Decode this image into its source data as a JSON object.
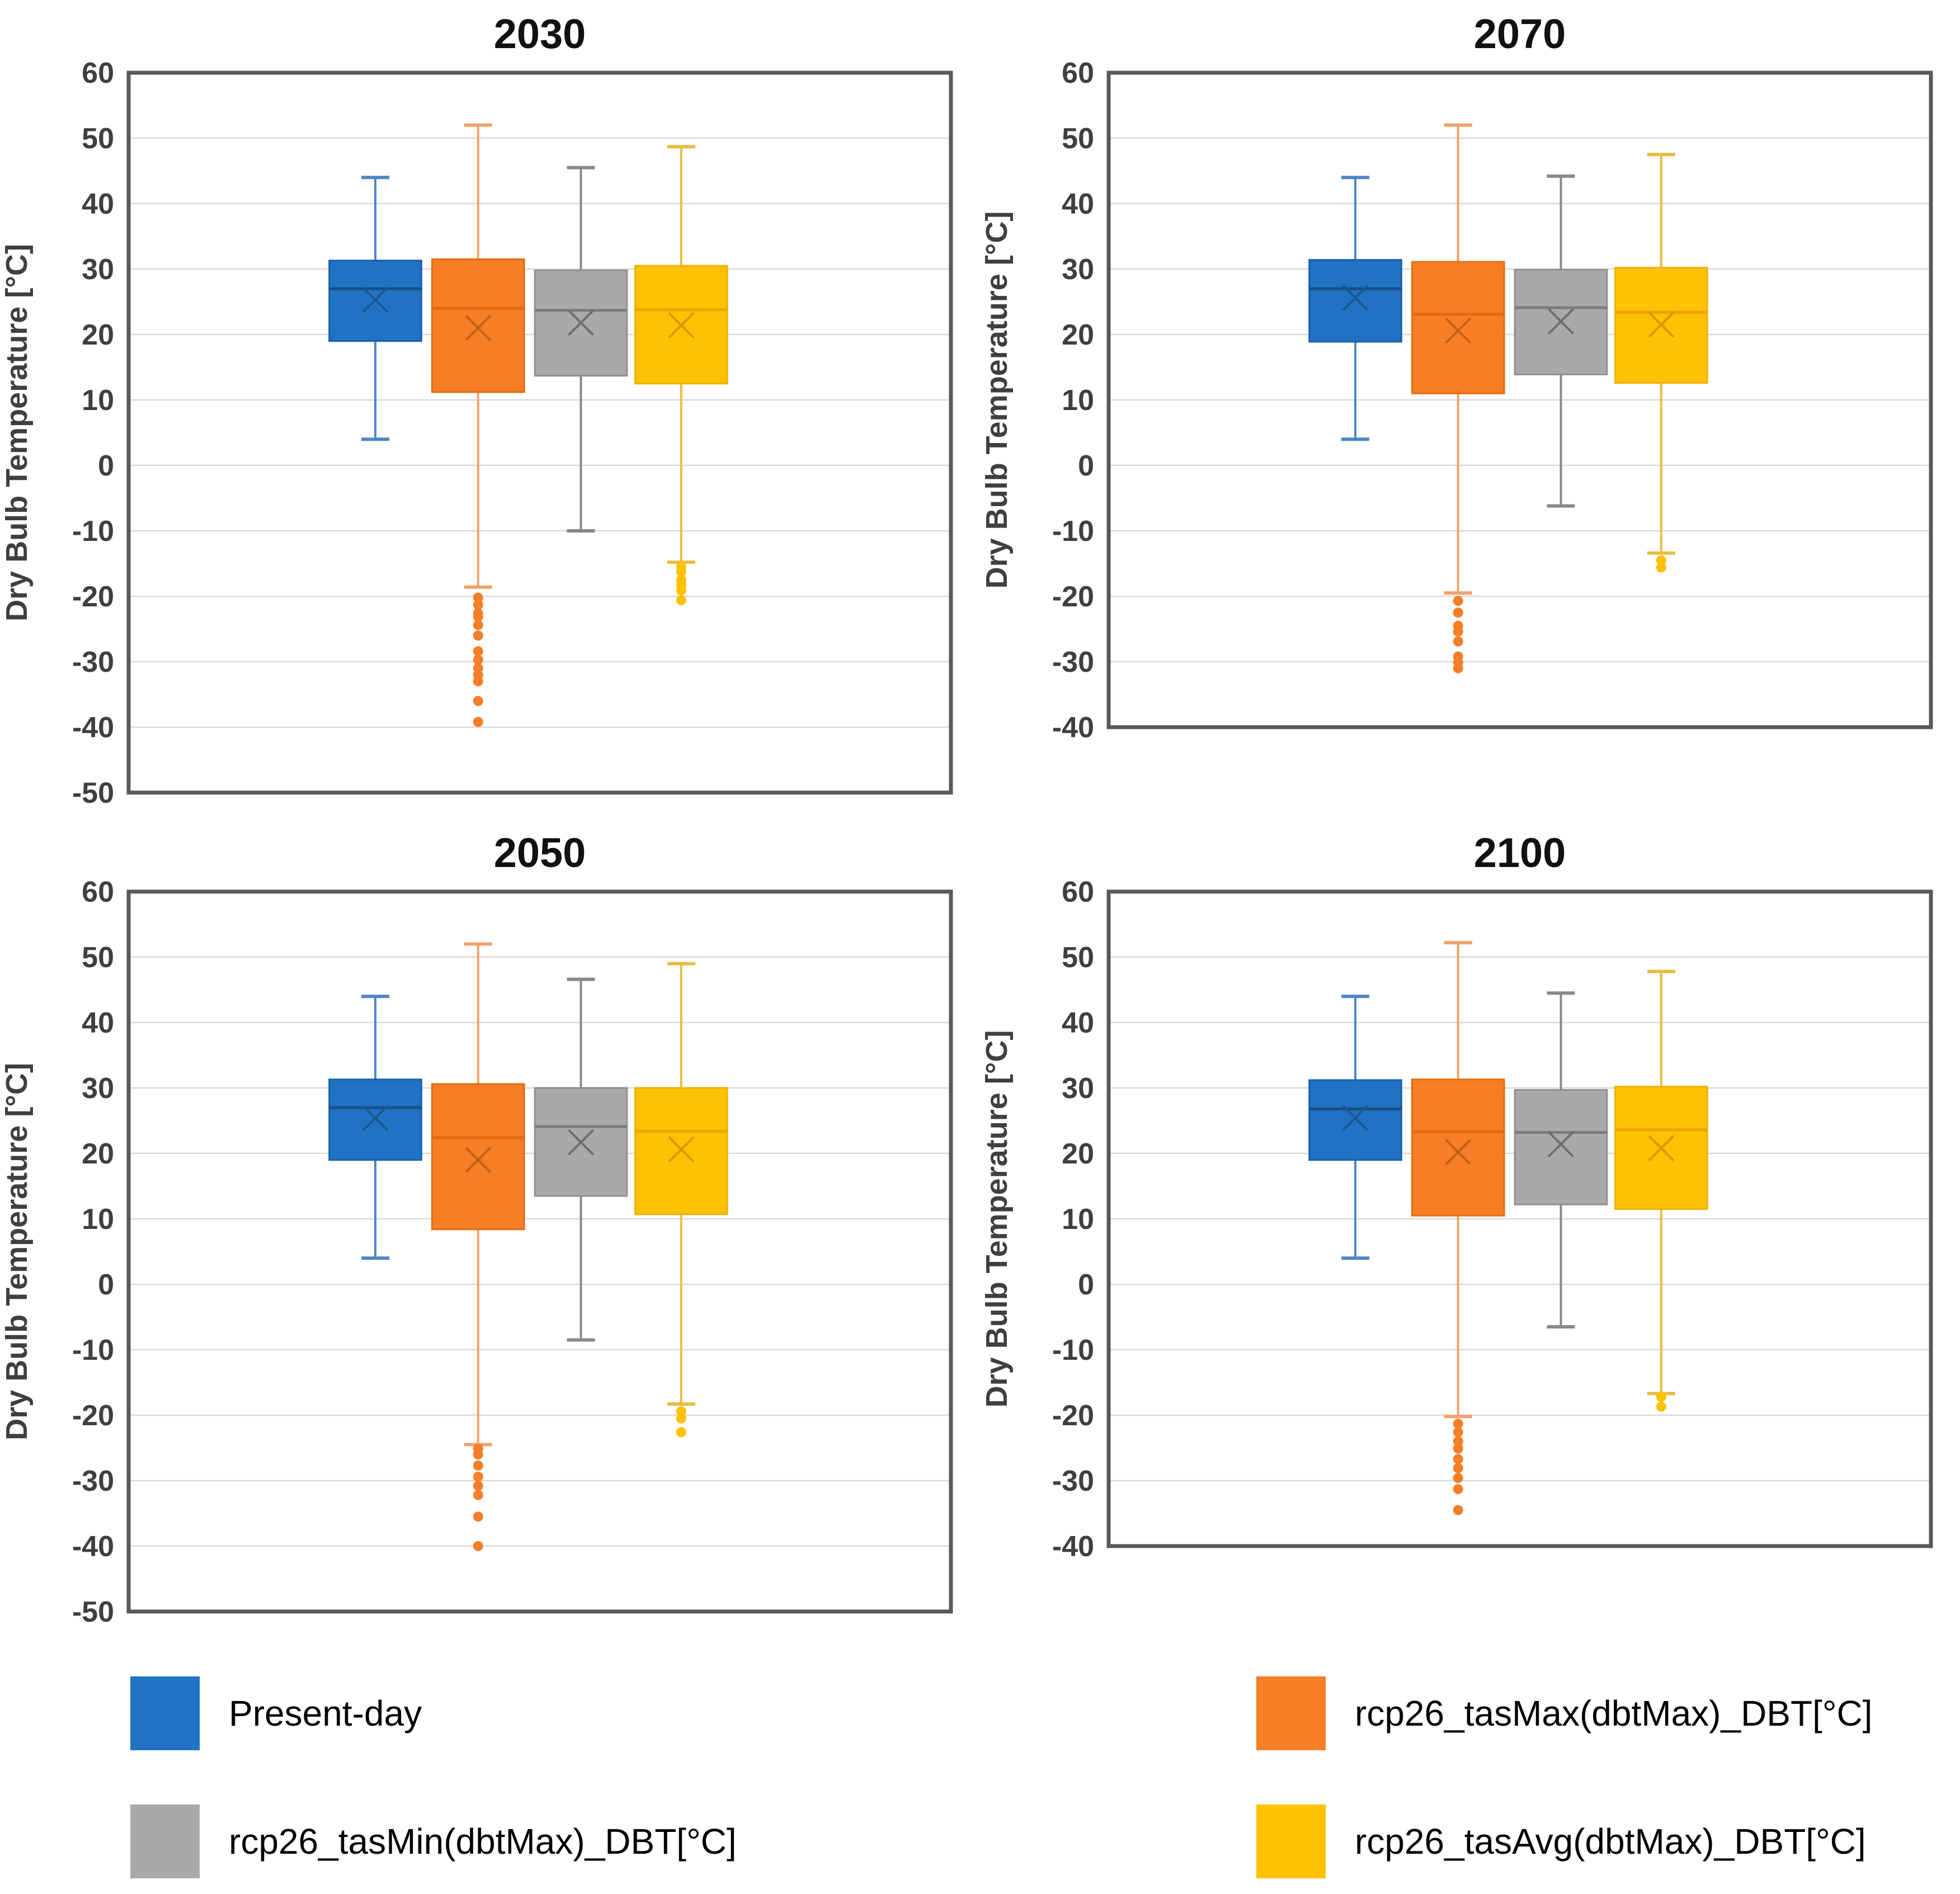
{
  "figure": {
    "ylabel": "Dry Bulb Temperature [°C]",
    "legend_position": "bottom",
    "grid": true
  },
  "colors": {
    "present_day": {
      "fill": "#1f72c4",
      "stroke": "#1a60a8",
      "median": "#1a4e84",
      "mean": "#1d568f",
      "whisker": "#4e86c6"
    },
    "tas_max": {
      "fill": "#f57e27",
      "stroke": "#e56d10",
      "median": "#e06a10",
      "mean": "#c55f13",
      "whisker": "#f0a26b"
    },
    "tas_min": {
      "fill": "#a9a9a9",
      "stroke": "#8f8f8f",
      "median": "#7c7c7c",
      "mean": "#6e6e6e",
      "whisker": "#898989"
    },
    "tas_avg": {
      "fill": "#ffc103",
      "stroke": "#edb100",
      "median": "#efa200",
      "mean": "#db9600",
      "whisker": "#e9bc41"
    }
  },
  "legend": {
    "items": [
      {
        "label": "Present-day",
        "color_key": "present_day"
      },
      {
        "label": "rcp26_tasMax(dbtMax)_DBT[°C]",
        "color_key": "tas_max"
      },
      {
        "label": "rcp26_tasMin(dbtMax)_DBT[°C]",
        "color_key": "tas_min"
      },
      {
        "label": "rcp26_tasAvg(dbtMax)_DBT[°C]",
        "color_key": "tas_avg"
      }
    ]
  },
  "chart_data": [
    {
      "type": "box",
      "title": "2030",
      "ylabel": "Dry Bulb Temperature [°C]",
      "ylim": [
        -50,
        60
      ],
      "ytick_step": 10,
      "series": [
        {
          "id": "present-day",
          "name": "Present-day",
          "color_key": "present_day",
          "min": 4,
          "q1": 19,
          "median": 27,
          "q3": 31.3,
          "max": 44,
          "mean": 25.3,
          "outliers": []
        },
        {
          "id": "rcp26-tasmax",
          "name": "rcp26_tasMax(dbtMax)_DBT[°C]",
          "color_key": "tas_max",
          "min": -18.6,
          "q1": 11.2,
          "median": 24,
          "q3": 31.5,
          "max": 52,
          "mean": 21,
          "outliers": [
            -20.2,
            -21.3,
            -22.6,
            -23.1,
            -24.4,
            -26.0,
            -28.4,
            -29.7,
            -31.0,
            -32.0,
            -33.0,
            -36.0,
            -39.2
          ]
        },
        {
          "id": "rcp26-tasmin",
          "name": "rcp26_tasMin(dbtMax)_DBT[°C]",
          "color_key": "tas_min",
          "min": -10,
          "q1": 13.7,
          "median": 23.7,
          "q3": 29.8,
          "max": 45.5,
          "mean": 21.8,
          "outliers": []
        },
        {
          "id": "rcp26-tasavg",
          "name": "rcp26_tasAvg(dbtMax)_DBT[°C]",
          "color_key": "tas_avg",
          "min": -14.8,
          "q1": 12.5,
          "median": 23.8,
          "q3": 30.5,
          "max": 48.7,
          "mean": 21.4,
          "outliers": [
            -15.5,
            -16.3,
            -17.5,
            -18.2,
            -19.1,
            -20.6
          ]
        }
      ]
    },
    {
      "type": "box",
      "title": "2070",
      "ylabel": "Dry Bulb Temperature [°C]",
      "ylim": [
        -40,
        60
      ],
      "ytick_step": 10,
      "series": [
        {
          "id": "present-day",
          "name": "Present-day",
          "color_key": "present_day",
          "min": 4,
          "q1": 18.9,
          "median": 27,
          "q3": 31.4,
          "max": 44,
          "mean": 25.6,
          "outliers": []
        },
        {
          "id": "rcp26-tasmax",
          "name": "rcp26_tasMax(dbtMax)_DBT[°C]",
          "color_key": "tas_max",
          "min": -19.5,
          "q1": 11,
          "median": 23.1,
          "q3": 31.1,
          "max": 52,
          "mean": 20.6,
          "outliers": [
            -20.7,
            -22.5,
            -24.5,
            -25.4,
            -26.9,
            -29.2,
            -30.1,
            -31.0
          ]
        },
        {
          "id": "rcp26-tasmin",
          "name": "rcp26_tasMin(dbtMax)_DBT[°C]",
          "color_key": "tas_min",
          "min": -6.2,
          "q1": 13.9,
          "median": 24.1,
          "q3": 29.9,
          "max": 44.2,
          "mean": 22,
          "outliers": []
        },
        {
          "id": "rcp26-tasavg",
          "name": "rcp26_tasAvg(dbtMax)_DBT[°C]",
          "color_key": "tas_avg",
          "min": -13.4,
          "q1": 12.6,
          "median": 23.4,
          "q3": 30.2,
          "max": 47.5,
          "mean": 21.5,
          "outliers": [
            -14.5,
            -15.6
          ]
        }
      ]
    },
    {
      "type": "box",
      "title": "2050",
      "ylabel": "Dry Bulb Temperature [°C]",
      "ylim": [
        -50,
        60
      ],
      "ytick_step": 10,
      "series": [
        {
          "id": "present-day",
          "name": "Present-day",
          "color_key": "present_day",
          "min": 4,
          "q1": 19,
          "median": 27,
          "q3": 31.3,
          "max": 44,
          "mean": 25.4,
          "outliers": []
        },
        {
          "id": "rcp26-tasmax",
          "name": "rcp26_tasMax(dbtMax)_DBT[°C]",
          "color_key": "tas_max",
          "min": -24.5,
          "q1": 8.4,
          "median": 22.4,
          "q3": 30.6,
          "max": 52,
          "mean": 19,
          "outliers": [
            -25.1,
            -26.0,
            -27.7,
            -29.4,
            -30.8,
            -32.2,
            -35.5,
            -40.0
          ]
        },
        {
          "id": "rcp26-tasmin",
          "name": "rcp26_tasMin(dbtMax)_DBT[°C]",
          "color_key": "tas_min",
          "min": -8.5,
          "q1": 13.5,
          "median": 24.1,
          "q3": 30,
          "max": 46.6,
          "mean": 21.7,
          "outliers": []
        },
        {
          "id": "rcp26-tasavg",
          "name": "rcp26_tasAvg(dbtMax)_DBT[°C]",
          "color_key": "tas_avg",
          "min": -18.3,
          "q1": 10.7,
          "median": 23.4,
          "q3": 30,
          "max": 49,
          "mean": 20.6,
          "outliers": [
            -19.4,
            -20.5,
            -22.6
          ]
        }
      ]
    },
    {
      "type": "box",
      "title": "2100",
      "ylabel": "Dry Bulb Temperature [°C]",
      "ylim": [
        -40,
        60
      ],
      "ytick_step": 10,
      "series": [
        {
          "id": "present-day",
          "name": "Present-day",
          "color_key": "present_day",
          "min": 4,
          "q1": 19,
          "median": 26.8,
          "q3": 31.2,
          "max": 44,
          "mean": 25.4,
          "outliers": []
        },
        {
          "id": "rcp26-tasmax",
          "name": "rcp26_tasMax(dbtMax)_DBT[°C]",
          "color_key": "tas_max",
          "min": -20.2,
          "q1": 10.5,
          "median": 23.3,
          "q3": 31.3,
          "max": 52.2,
          "mean": 20.2,
          "outliers": [
            -21.3,
            -22.6,
            -24.0,
            -25.1,
            -26.7,
            -28.1,
            -29.6,
            -31.3,
            -34.5
          ]
        },
        {
          "id": "rcp26-tasmin",
          "name": "rcp26_tasMin(dbtMax)_DBT[°C]",
          "color_key": "tas_min",
          "min": -6.5,
          "q1": 12.2,
          "median": 23.2,
          "q3": 29.7,
          "max": 44.5,
          "mean": 21.4,
          "outliers": []
        },
        {
          "id": "rcp26-tasavg",
          "name": "rcp26_tasAvg(dbtMax)_DBT[°C]",
          "color_key": "tas_avg",
          "min": -16.7,
          "q1": 11.5,
          "median": 23.6,
          "q3": 30.2,
          "max": 47.8,
          "mean": 20.8,
          "outliers": [
            -17.2,
            -18.7
          ]
        }
      ]
    }
  ]
}
